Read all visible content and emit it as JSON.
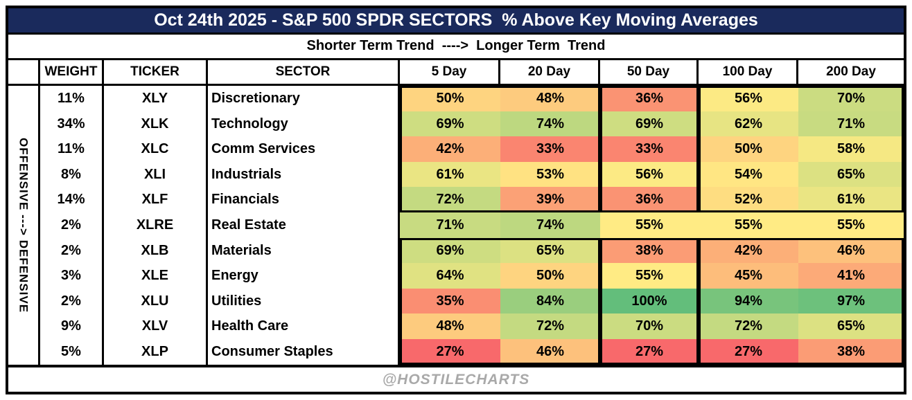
{
  "title": "Oct 24th 2025 - S&P 500 SPDR SECTORS  % Above Key Moving Averages",
  "subtitle": "Shorter Term Trend  ---->  Longer Term  Trend",
  "left_axis_label": "OFFENSIVE ---> DEFENSIVE",
  "footer": "@HOSTILECHARTS",
  "colors": {
    "title_bg": "#1A2A5C",
    "title_text": "#FFFFFF",
    "border": "#000000",
    "footer_text": "#A9A9A9"
  },
  "chart_data": {
    "type": "heatmap",
    "title": "Oct 24th 2025 - S&P 500 SPDR SECTORS  % Above Key Moving Averages",
    "column_headers": [
      "WEIGHT",
      "TICKER",
      "SECTOR",
      "5 Day",
      "20 Day",
      "50 Day",
      "100 Day",
      "200 Day"
    ],
    "value_columns": [
      "5 Day",
      "20 Day",
      "50 Day",
      "100 Day",
      "200 Day"
    ],
    "value_suffix": "%",
    "rows": [
      {
        "weight": "11%",
        "ticker": "XLY",
        "sector": "Discretionary",
        "values": [
          50,
          48,
          36,
          56,
          70
        ]
      },
      {
        "weight": "34%",
        "ticker": "XLK",
        "sector": "Technology",
        "values": [
          69,
          74,
          69,
          62,
          71
        ]
      },
      {
        "weight": "11%",
        "ticker": "XLC",
        "sector": "Comm Services",
        "values": [
          42,
          33,
          33,
          50,
          58
        ]
      },
      {
        "weight": "8%",
        "ticker": "XLI",
        "sector": "Industrials",
        "values": [
          61,
          53,
          56,
          54,
          65
        ]
      },
      {
        "weight": "14%",
        "ticker": "XLF",
        "sector": "Financials",
        "values": [
          72,
          39,
          36,
          52,
          61
        ]
      },
      {
        "weight": "2%",
        "ticker": "XLRE",
        "sector": "Real Estate",
        "values": [
          71,
          74,
          55,
          55,
          55
        ]
      },
      {
        "weight": "2%",
        "ticker": "XLB",
        "sector": "Materials",
        "values": [
          69,
          65,
          38,
          42,
          46
        ]
      },
      {
        "weight": "3%",
        "ticker": "XLE",
        "sector": "Energy",
        "values": [
          64,
          50,
          55,
          45,
          41
        ]
      },
      {
        "weight": "2%",
        "ticker": "XLU",
        "sector": "Utilities",
        "values": [
          35,
          84,
          100,
          94,
          97
        ]
      },
      {
        "weight": "9%",
        "ticker": "XLV",
        "sector": "Health Care",
        "values": [
          48,
          72,
          70,
          72,
          65
        ]
      },
      {
        "weight": "5%",
        "ticker": "XLP",
        "sector": "Consumer Staples",
        "values": [
          27,
          46,
          27,
          27,
          38
        ]
      }
    ],
    "color_scale": {
      "min_value": 27,
      "mid_value": 55,
      "max_value": 100,
      "min_color": "#F8696B",
      "mid_color": "#FFEB84",
      "max_color": "#63BE7B"
    },
    "group_boxes": [
      {
        "row_start": 0,
        "row_count": 5,
        "col_start": 0,
        "col_count": 2
      },
      {
        "row_start": 0,
        "row_count": 5,
        "col_start": 2,
        "col_count": 1
      },
      {
        "row_start": 0,
        "row_count": 5,
        "col_start": 3,
        "col_count": 2
      },
      {
        "row_start": 6,
        "row_count": 5,
        "col_start": 0,
        "col_count": 2
      },
      {
        "row_start": 6,
        "row_count": 5,
        "col_start": 2,
        "col_count": 1
      },
      {
        "row_start": 6,
        "row_count": 5,
        "col_start": 3,
        "col_count": 2
      }
    ],
    "layout": {
      "grid": "off",
      "row_order": "offensive-to-defensive"
    }
  }
}
